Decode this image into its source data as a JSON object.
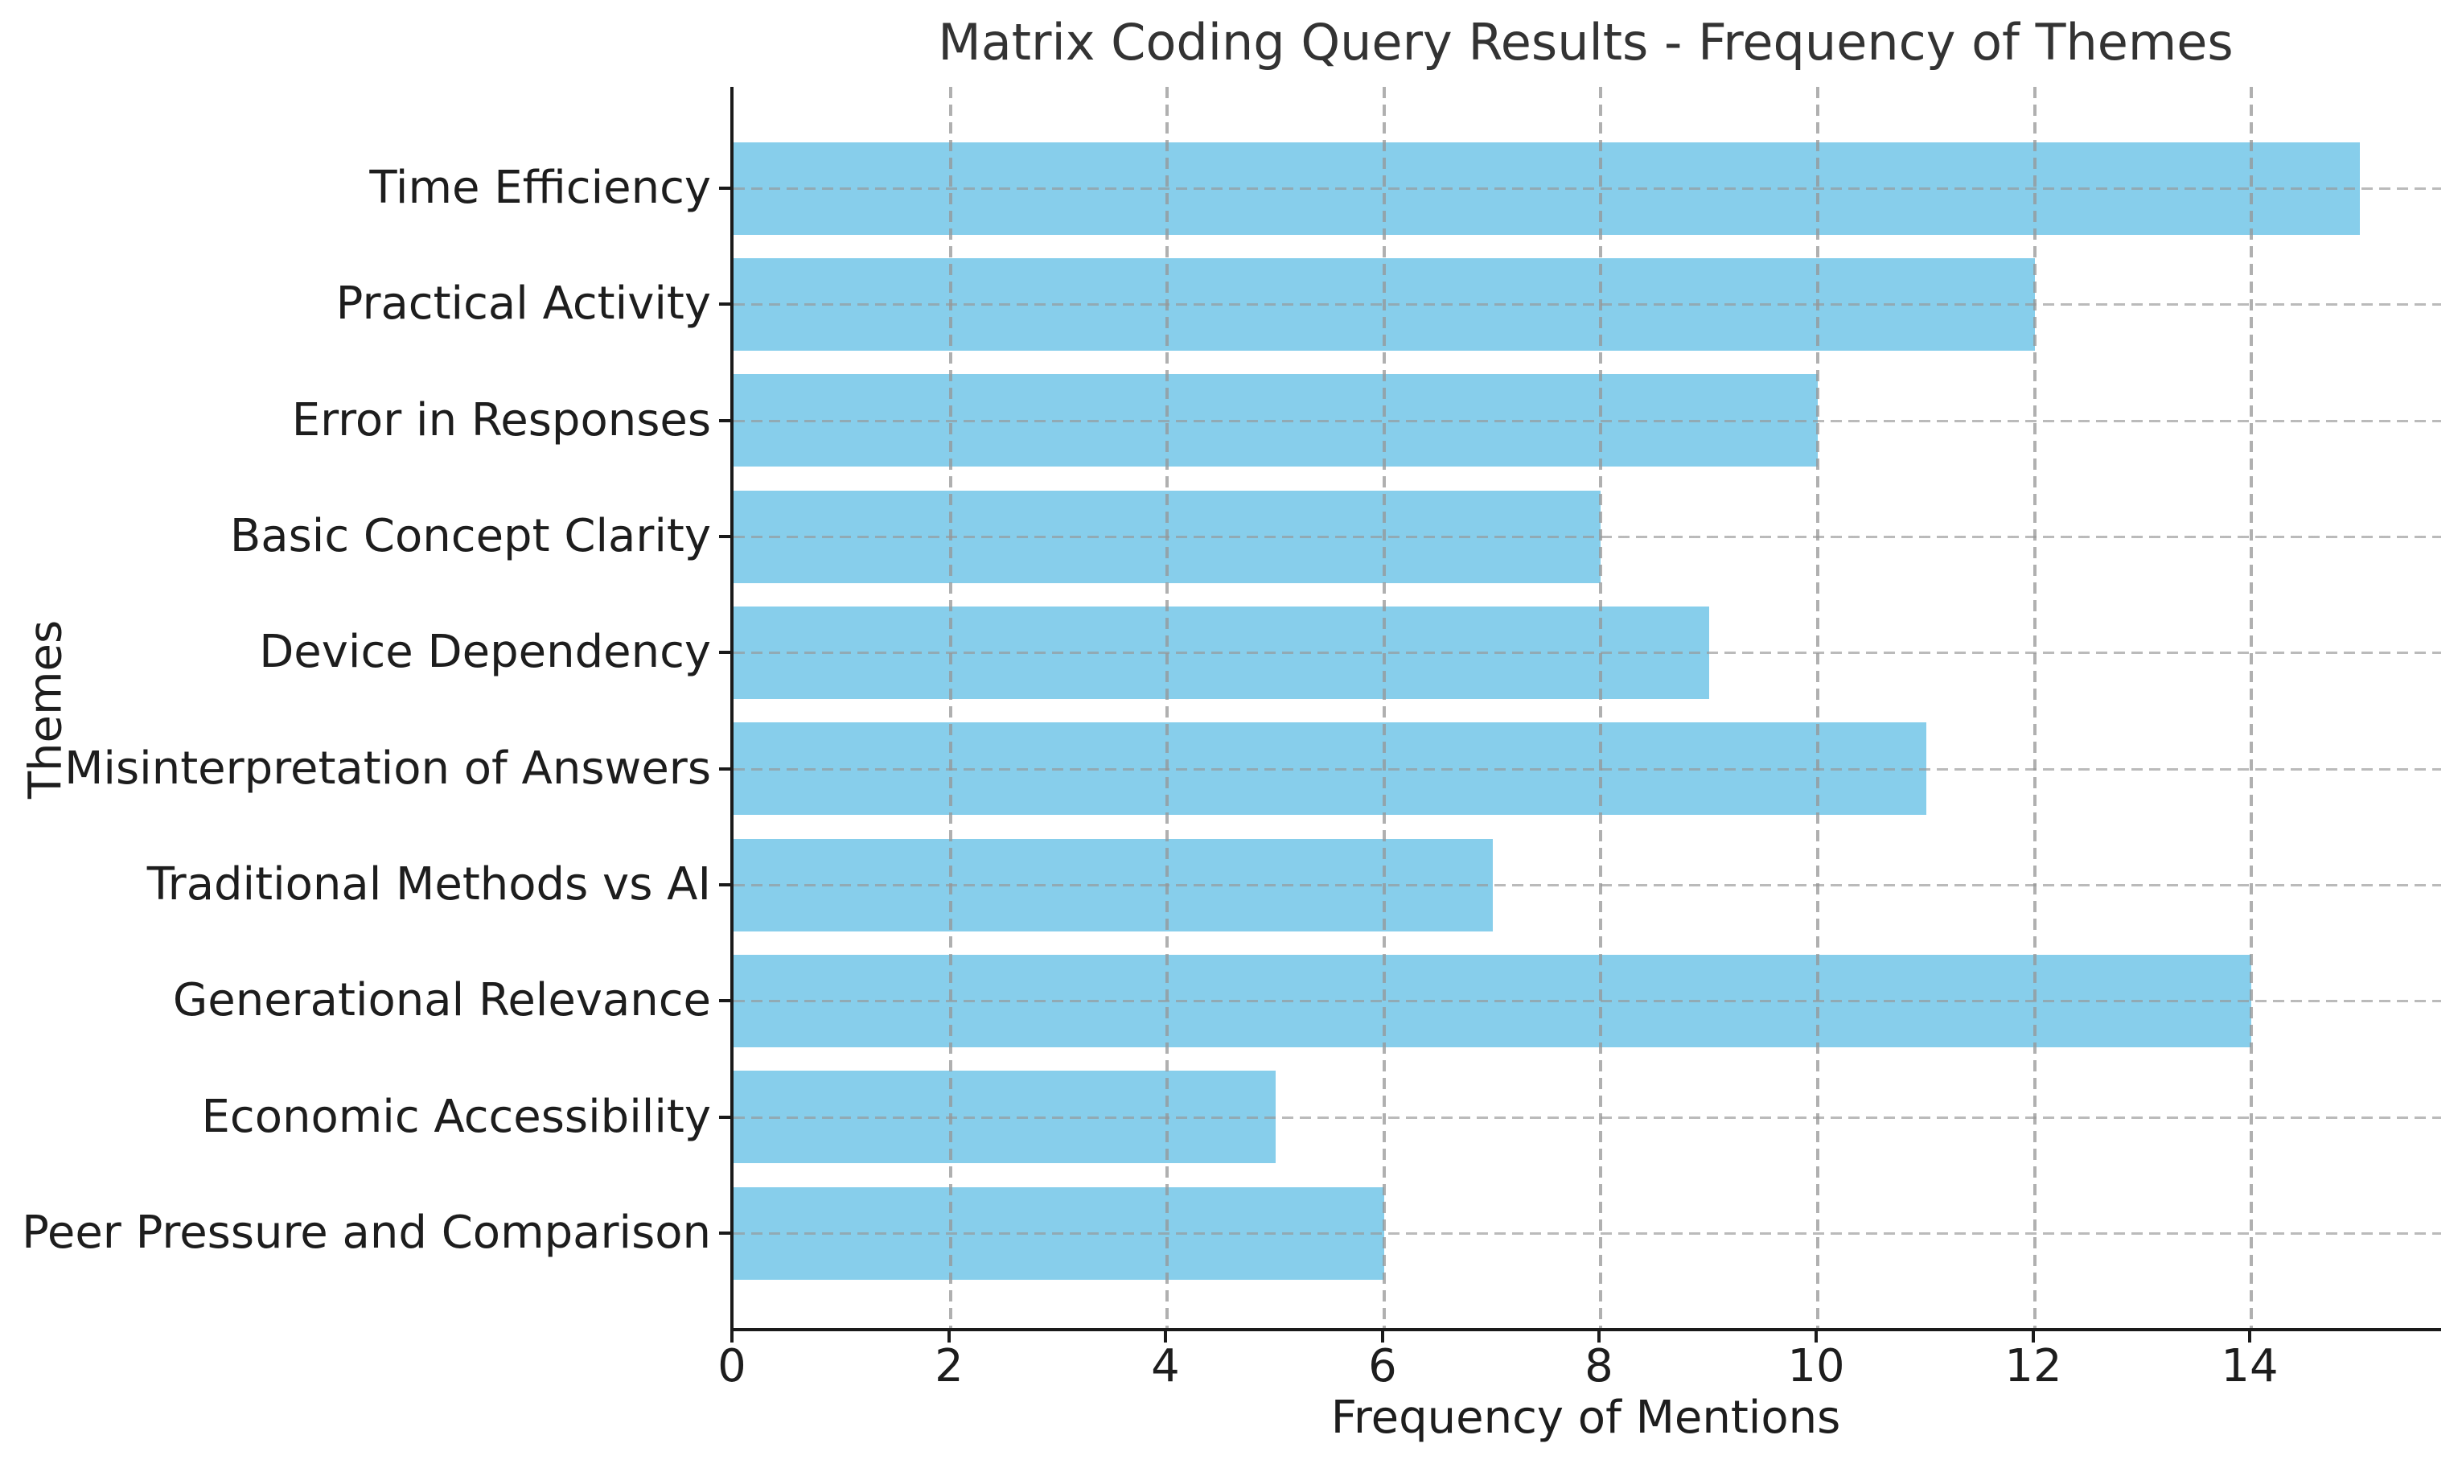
{
  "chart_data": {
    "type": "bar",
    "orientation": "horizontal",
    "title": "Matrix Coding Query Results - Frequency of Themes",
    "xlabel": "Frequency of Mentions",
    "ylabel": "Themes",
    "categories": [
      "Time Efficiency",
      "Practical Activity",
      "Error in Responses",
      "Basic Concept Clarity",
      "Device Dependency",
      "Misinterpretation of Answers",
      "Traditional Methods vs AI",
      "Generational Relevance",
      "Economic Accessibility",
      "Peer Pressure and Comparison"
    ],
    "values": [
      15,
      12,
      10,
      8,
      9,
      11,
      7,
      14,
      5,
      6
    ],
    "xticks": [
      0,
      2,
      4,
      6,
      8,
      10,
      12,
      14
    ],
    "xlim": [
      0,
      15.75
    ],
    "bar_color": "#87CEEB",
    "grid": true,
    "grid_linestyle": "dashed",
    "grid_color": "#969696",
    "legend": "none",
    "background_color": "#ffffff"
  }
}
